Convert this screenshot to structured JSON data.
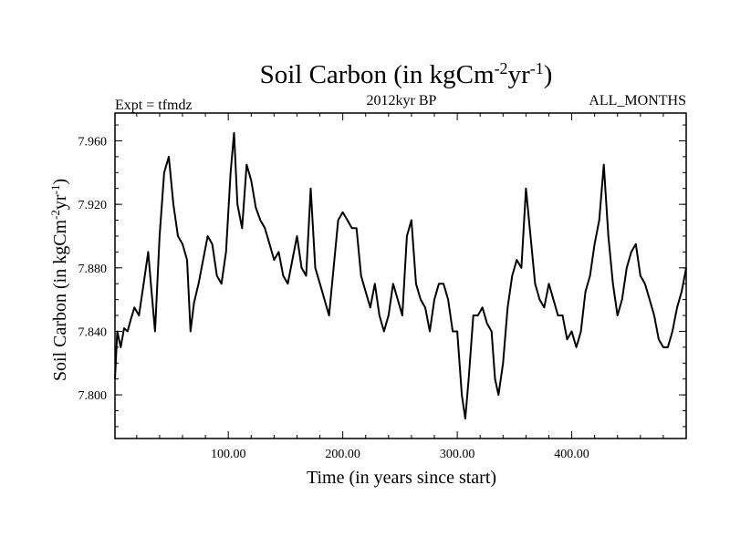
{
  "chart_data": {
    "type": "line",
    "title_main": "Soil Carbon (in kgCm",
    "title_sup1": "-2",
    "title_mid": "yr",
    "title_sup2": "-1",
    "title_end": ")",
    "subtitle_left": "Expt = tfmdz",
    "subtitle_center": "2012kyr BP",
    "subtitle_right": "ALL_MONTHS",
    "xlabel": "Time (in years since start)",
    "ylabel_main": "Soil Carbon (in kgCm",
    "ylabel_sup1": "-2",
    "ylabel_mid": "yr",
    "ylabel_sup2": "-1",
    "ylabel_end": ")",
    "xlim": [
      1,
      500
    ],
    "ylim": [
      7.7725,
      7.9775
    ],
    "x_ticks": [
      100,
      200,
      300,
      400
    ],
    "x_tick_labels": [
      "100.00",
      "200.00",
      "300.00",
      "400.00"
    ],
    "y_ticks": [
      7.8,
      7.84,
      7.88,
      7.92,
      7.96
    ],
    "y_tick_labels": [
      "7.800",
      "7.840",
      "7.880",
      "7.920",
      "7.960"
    ],
    "series": [
      {
        "name": "Soil Carbon",
        "color": "#000000",
        "x": [
          1,
          3,
          6,
          9,
          12,
          15,
          18,
          22,
          26,
          30,
          33,
          36,
          40,
          44,
          48,
          52,
          56,
          60,
          64,
          67,
          70,
          74,
          78,
          82,
          86,
          90,
          94,
          98,
          102,
          105,
          108,
          112,
          116,
          120,
          124,
          128,
          132,
          136,
          140,
          144,
          148,
          152,
          156,
          160,
          164,
          168,
          172,
          176,
          180,
          184,
          188,
          192,
          196,
          200,
          204,
          208,
          212,
          216,
          220,
          224,
          228,
          232,
          236,
          240,
          244,
          248,
          252,
          256,
          260,
          264,
          268,
          272,
          276,
          280,
          284,
          288,
          292,
          296,
          300,
          304,
          307,
          310,
          314,
          318,
          322,
          326,
          330,
          333,
          336,
          340,
          344,
          348,
          352,
          356,
          360,
          364,
          368,
          372,
          376,
          380,
          384,
          388,
          392,
          396,
          400,
          404,
          408,
          412,
          416,
          420,
          424,
          428,
          432,
          436,
          440,
          444,
          448,
          452,
          456,
          460,
          464,
          468,
          472,
          476,
          480,
          484,
          488,
          492,
          496,
          500
        ],
        "values": [
          7.81,
          7.84,
          7.83,
          7.842,
          7.84,
          7.848,
          7.855,
          7.85,
          7.87,
          7.89,
          7.865,
          7.84,
          7.9,
          7.94,
          7.95,
          7.92,
          7.9,
          7.895,
          7.885,
          7.84,
          7.858,
          7.87,
          7.885,
          7.9,
          7.895,
          7.875,
          7.87,
          7.89,
          7.94,
          7.965,
          7.92,
          7.905,
          7.945,
          7.935,
          7.918,
          7.91,
          7.905,
          7.895,
          7.885,
          7.89,
          7.875,
          7.87,
          7.885,
          7.9,
          7.88,
          7.875,
          7.93,
          7.88,
          7.87,
          7.86,
          7.85,
          7.88,
          7.91,
          7.915,
          7.91,
          7.905,
          7.905,
          7.875,
          7.865,
          7.855,
          7.87,
          7.85,
          7.84,
          7.85,
          7.87,
          7.86,
          7.85,
          7.9,
          7.91,
          7.87,
          7.86,
          7.855,
          7.84,
          7.86,
          7.87,
          7.87,
          7.86,
          7.84,
          7.84,
          7.8,
          7.785,
          7.81,
          7.85,
          7.85,
          7.855,
          7.845,
          7.84,
          7.81,
          7.8,
          7.82,
          7.855,
          7.875,
          7.885,
          7.88,
          7.93,
          7.9,
          7.87,
          7.86,
          7.855,
          7.87,
          7.86,
          7.85,
          7.85,
          7.835,
          7.84,
          7.83,
          7.84,
          7.865,
          7.875,
          7.895,
          7.91,
          7.945,
          7.9,
          7.87,
          7.85,
          7.86,
          7.88,
          7.89,
          7.895,
          7.875,
          7.87,
          7.86,
          7.85,
          7.835,
          7.83,
          7.83,
          7.84,
          7.855,
          7.865,
          7.88
        ]
      }
    ]
  }
}
